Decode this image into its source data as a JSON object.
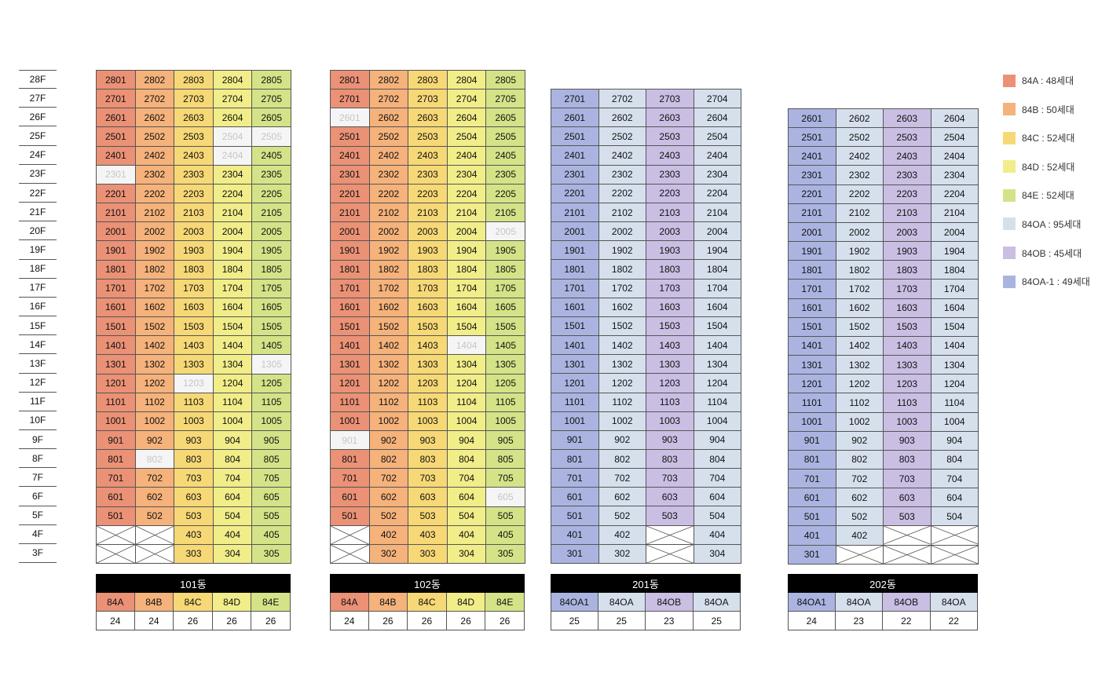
{
  "floors": [
    "28F",
    "27F",
    "26F",
    "25F",
    "24F",
    "23F",
    "22F",
    "21F",
    "20F",
    "19F",
    "18F",
    "17F",
    "16F",
    "15F",
    "14F",
    "13F",
    "12F",
    "11F",
    "10F",
    "9F",
    "8F",
    "7F",
    "6F",
    "5F",
    "4F",
    "3F"
  ],
  "colors": {
    "84A": "#ea9176",
    "84B": "#f5b27b",
    "84C": "#f7d876",
    "84D": "#f1ed89",
    "84E": "#d4e387",
    "84OA": "#d6e0ed",
    "84OB": "#cbbee3",
    "84OA-1": "#abb4e1",
    "vacant": "#f5f5f5"
  },
  "legend": [
    {
      "type": "84A",
      "label": "84A  :  48세대"
    },
    {
      "type": "84B",
      "label": "84B :  50세대"
    },
    {
      "type": "84C",
      "label": "84C :  52세대"
    },
    {
      "type": "84D",
      "label": "84D :  52세대"
    },
    {
      "type": "84E",
      "label": "84E :  52세대"
    },
    {
      "type": "84OA",
      "label": "84OA :  95세대"
    },
    {
      "type": "84OB",
      "label": "84OB :  45세대"
    },
    {
      "type": "84OA-1",
      "label": "84OA-1 :  49세대"
    }
  ],
  "buildings": [
    {
      "name": "101동",
      "top_floor": 28,
      "bottom_floor": 3,
      "columns": [
        {
          "line": "01",
          "type": "84A",
          "label": "84A",
          "count": "24"
        },
        {
          "line": "02",
          "type": "84B",
          "label": "84B",
          "count": "24"
        },
        {
          "line": "03",
          "type": "84C",
          "label": "84C",
          "count": "26"
        },
        {
          "line": "04",
          "type": "84D",
          "label": "84D",
          "count": "26"
        },
        {
          "line": "05",
          "type": "84E",
          "label": "84E",
          "count": "26"
        }
      ],
      "vacant": [
        "2504",
        "2505",
        "2404",
        "2301",
        "1305",
        "1203",
        "802"
      ],
      "crossed": [
        "401",
        "402",
        "301",
        "302"
      ]
    },
    {
      "name": "102동",
      "top_floor": 28,
      "bottom_floor": 3,
      "columns": [
        {
          "line": "01",
          "type": "84A",
          "label": "84A",
          "count": "24"
        },
        {
          "line": "02",
          "type": "84B",
          "label": "84B",
          "count": "26"
        },
        {
          "line": "03",
          "type": "84C",
          "label": "84C",
          "count": "26"
        },
        {
          "line": "04",
          "type": "84D",
          "label": "84D",
          "count": "26"
        },
        {
          "line": "05",
          "type": "84E",
          "label": "84E",
          "count": "26"
        }
      ],
      "vacant": [
        "2601",
        "2005",
        "1404",
        "901",
        "605"
      ],
      "crossed": [
        "401",
        "301"
      ]
    },
    {
      "name": "201동",
      "top_floor": 27,
      "bottom_floor": 3,
      "columns": [
        {
          "line": "01",
          "type": "84OA-1",
          "label": "84OA1",
          "count": "25"
        },
        {
          "line": "02",
          "type": "84OA",
          "label": "84OA",
          "count": "25"
        },
        {
          "line": "03",
          "type": "84OB",
          "label": "84OB",
          "count": "23"
        },
        {
          "line": "04",
          "type": "84OA",
          "label": "84OA",
          "count": "25"
        }
      ],
      "vacant": [],
      "crossed": [
        "403",
        "303"
      ]
    },
    {
      "name": "202동",
      "top_floor": 26,
      "bottom_floor": 3,
      "columns": [
        {
          "line": "01",
          "type": "84OA-1",
          "label": "84OA1",
          "count": "24"
        },
        {
          "line": "02",
          "type": "84OA",
          "label": "84OA",
          "count": "23"
        },
        {
          "line": "03",
          "type": "84OB",
          "label": "84OB",
          "count": "22"
        },
        {
          "line": "04",
          "type": "84OA",
          "label": "84OA",
          "count": "22"
        }
      ],
      "vacant": [],
      "crossed": [
        "403",
        "404",
        "302",
        "303",
        "304"
      ]
    }
  ]
}
